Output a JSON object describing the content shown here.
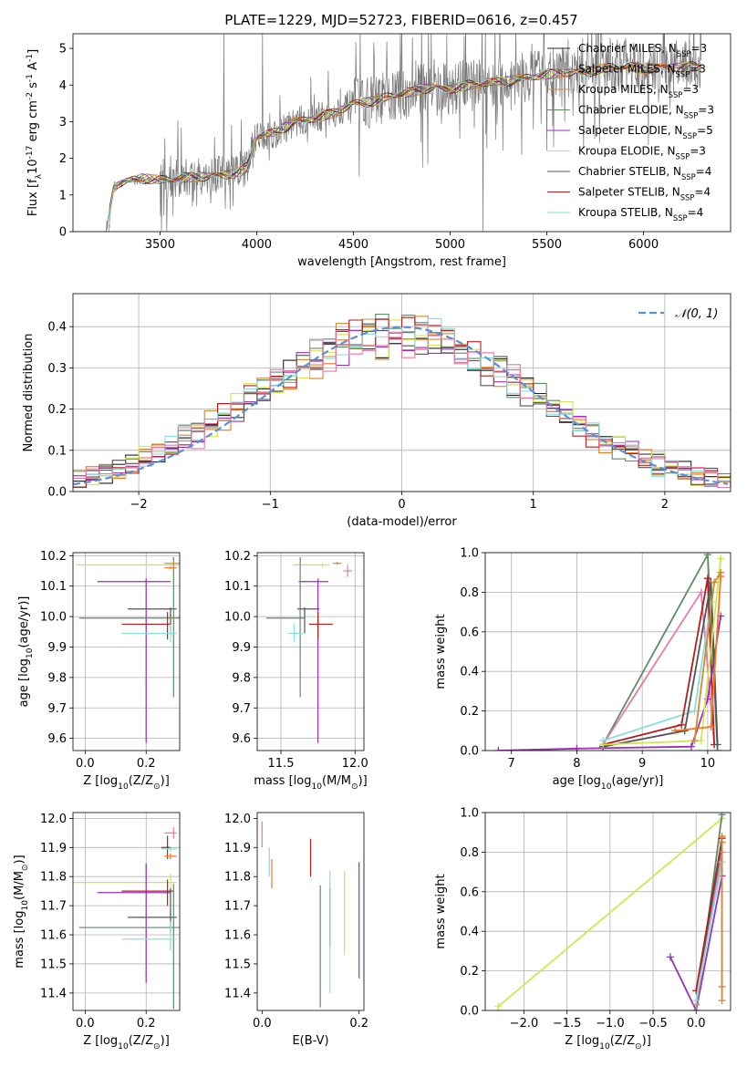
{
  "page_title": "PLATE=1229, MJD=52723, FIBERID=0616, z=0.457",
  "colors": {
    "Chabrier MILES": "#222222",
    "Salpeter MILES": "#f07820",
    "Kroupa MILES": "#d08a30",
    "Chabrier ELODIE": "#5e8c62",
    "Salpeter ELODIE": "#9b2fb8",
    "Kroupa ELODIE": "#d0e550",
    "Chabrier STELIB": "#555555",
    "Salpeter STELIB": "#b21e1e",
    "Kroupa STELIB": "#88dddd",
    "extra_pink": "#e87aa8",
    "gauss": "#5b8fd6"
  },
  "chart_data": [
    {
      "id": "spectrum",
      "type": "line",
      "title": "PLATE=1229, MJD=52723, FIBERID=0616, z=0.457",
      "xlabel": "wavelength [Angstrom, rest frame]",
      "ylabel": "Flux [f$_λ$10$^{-17}$ erg cm$^{-2}$ s$^{-1}$ A$^{-1}$]",
      "xlim": [
        3050,
        6450
      ],
      "ylim": [
        0,
        5.4
      ],
      "xticks": [
        3500,
        4000,
        4500,
        5000,
        5500,
        6000
      ],
      "yticks": [
        0,
        1,
        2,
        3,
        4,
        5
      ],
      "legend": [
        "Chabrier MILES, N$_{SSP}$=3",
        "Salpeter MILES, N$_{SSP}$=3",
        "Kroupa MILES, N$_{SSP}$=3",
        "Chabrier ELODIE, N$_{SSP}$=3",
        "Salpeter ELODIE, N$_{SSP}$=5",
        "Kroupa ELODIE, N$_{SSP}$=3",
        "Chabrier STELIB, N$_{SSP}$=4",
        "Salpeter STELIB, N$_{SSP}$=4",
        "Kroupa STELIB, N$_{SSP}$=4"
      ],
      "legend_placement": "upper-right",
      "continuum": {
        "x": [
          3220,
          3260,
          3300,
          3400,
          3500,
          3600,
          3700,
          3800,
          3900,
          3950,
          4000,
          4100,
          4200,
          4300,
          4400,
          4500,
          4600,
          4700,
          4800,
          4900,
          5000,
          5100,
          5200,
          5300,
          5400,
          5500,
          5600,
          5700,
          5800,
          5900,
          6000,
          6100,
          6200,
          6300
        ],
        "y": [
          0.0,
          1.2,
          1.35,
          1.45,
          1.4,
          1.45,
          1.5,
          1.55,
          1.6,
          1.75,
          2.6,
          2.7,
          3.0,
          3.1,
          3.25,
          3.5,
          3.55,
          3.7,
          3.8,
          3.95,
          3.9,
          4.0,
          4.05,
          4.1,
          4.2,
          4.3,
          4.35,
          4.35,
          4.45,
          4.5,
          4.45,
          4.5,
          4.5,
          4.5
        ]
      }
    },
    {
      "id": "residuals",
      "type": "step-histogram",
      "xlabel": "(data-model)/error",
      "ylabel": "Normed distribution",
      "xlim": [
        -2.5,
        2.5
      ],
      "ylim": [
        0,
        0.48
      ],
      "xticks": [
        -2,
        -1,
        0,
        1,
        2
      ],
      "yticks": [
        0.0,
        0.1,
        0.2,
        0.3,
        0.4
      ],
      "legend": [
        "$\\mathcal{N}(0,1)$"
      ],
      "legend_placement": "upper-right",
      "bin_width": 0.1
    },
    {
      "id": "age-vs-z",
      "type": "errorbar",
      "xlabel": "Z [log$_{10}$($Z/Z_\\odot$)]",
      "ylabel": "age  [log$_{10}$($age/yr$)]",
      "xlim": [
        -0.04,
        0.31
      ],
      "ylim": [
        9.56,
        10.21
      ],
      "xticks": [
        0.0,
        0.2
      ],
      "yticks": [
        9.6,
        9.7,
        9.8,
        9.9,
        10.0,
        10.1,
        10.2
      ],
      "points": [
        {
          "model": "Kroupa ELODIE",
          "x": 0.29,
          "y": 10.17,
          "xerr": [
            0.32,
            0.02
          ],
          "yerr": [
            0.01,
            0.005
          ]
        },
        {
          "model": "Salpeter ELODIE",
          "x": 0.2,
          "y": 10.115,
          "xerr": [
            0.16,
            0.08
          ],
          "yerr": [
            0.53,
            0.01
          ]
        },
        {
          "model": "Chabrier STELIB",
          "x": 0.28,
          "y": 10.025,
          "xerr": [
            0.14,
            0.02
          ],
          "yerr": [
            0.08,
            0.005
          ]
        },
        {
          "model": "Chabrier ELODIE",
          "x": 0.29,
          "y": 9.995,
          "xerr": [
            0.31,
            0.02
          ],
          "yerr": [
            0.26,
            0.2
          ]
        },
        {
          "model": "Salpeter STELIB",
          "x": 0.27,
          "y": 9.975,
          "xerr": [
            0.15,
            0.01
          ],
          "yerr": [
            0.05,
            0.04
          ]
        },
        {
          "model": "Kroupa STELIB",
          "x": 0.28,
          "y": 9.945,
          "xerr": [
            0.16,
            0.02
          ],
          "yerr": [
            0.03,
            0.03
          ]
        },
        {
          "model": "Kroupa MILES",
          "x": 0.29,
          "y": 10.175,
          "xerr": [
            0.03,
            0.02
          ],
          "yerr": [
            0.005,
            0.005
          ]
        },
        {
          "model": "Salpeter MILES",
          "x": 0.28,
          "y": 10.16,
          "xerr": [
            0.02,
            0.02
          ],
          "yerr": [
            0.005,
            0.005
          ]
        }
      ]
    },
    {
      "id": "age-vs-mass",
      "type": "errorbar",
      "xlabel": "mass [log$_{10}$($M/M_\\odot$)]",
      "xlim": [
        11.34,
        12.06
      ],
      "ylim": [
        9.56,
        10.21
      ],
      "xticks": [
        11.5,
        12.0
      ],
      "yticks": [
        9.6,
        9.7,
        9.8,
        9.9,
        10.0,
        10.1,
        10.2
      ],
      "points": [
        {
          "model": "Kroupa ELODIE",
          "x": 11.78,
          "y": 10.17,
          "xerr": [
            0.2,
            0.05
          ],
          "yerr": [
            0.01,
            0.005
          ]
        },
        {
          "model": "Salpeter ELODIE",
          "x": 11.75,
          "y": 10.115,
          "xerr": [
            0.13,
            0.07
          ],
          "yerr": [
            0.53,
            0.01
          ]
        },
        {
          "model": "Chabrier STELIB",
          "x": 11.66,
          "y": 10.025,
          "xerr": [
            0.05,
            0.1
          ],
          "yerr": [
            0.08,
            0.005
          ]
        },
        {
          "model": "Chabrier ELODIE",
          "x": 11.63,
          "y": 9.995,
          "xerr": [
            0.23,
            0.03
          ],
          "yerr": [
            0.26,
            0.2
          ]
        },
        {
          "model": "Salpeter STELIB",
          "x": 11.75,
          "y": 9.975,
          "xerr": [
            0.06,
            0.1
          ],
          "yerr": [
            0.05,
            0.04
          ]
        },
        {
          "model": "Kroupa STELIB",
          "x": 11.59,
          "y": 9.945,
          "xerr": [
            0.04,
            0.06
          ],
          "yerr": [
            0.03,
            0.03
          ]
        },
        {
          "model": "Kroupa MILES",
          "x": 11.88,
          "y": 10.175,
          "xerr": [
            0.03,
            0.03
          ],
          "yerr": [
            0.005,
            0.005
          ]
        },
        {
          "model": "extra_pink",
          "x": 11.95,
          "y": 10.15,
          "xerr": [
            0.03,
            0.03
          ],
          "yerr": [
            0.02,
            0.02
          ]
        }
      ]
    },
    {
      "id": "weight-vs-age",
      "type": "line",
      "xlabel": "age  [log$_{10}$($age/yr$)]",
      "ylabel": "mass weight",
      "xlim": [
        6.6,
        10.35
      ],
      "ylim": [
        0,
        1.0
      ],
      "xticks": [
        7,
        8,
        9,
        10
      ],
      "yticks": [
        0.0,
        0.2,
        0.4,
        0.6,
        0.8,
        1.0
      ],
      "series": [
        {
          "model": "Chabrier ELODIE",
          "x": [
            8.4,
            10.0,
            10.15
          ],
          "y": [
            0.03,
            0.99,
            0.0
          ]
        },
        {
          "model": "extra_pink",
          "x": [
            8.4,
            9.9,
            10.1
          ],
          "y": [
            0.03,
            0.8,
            0.03
          ]
        },
        {
          "model": "Kroupa STELIB",
          "x": [
            8.4,
            9.8,
            10.05
          ],
          "y": [
            0.05,
            0.2,
            0.75
          ]
        },
        {
          "model": "Salpeter STELIB",
          "x": [
            8.4,
            9.6,
            10.0,
            10.1
          ],
          "y": [
            0.03,
            0.13,
            0.87,
            0.03
          ]
        },
        {
          "model": "Salpeter ELODIE",
          "x": [
            6.8,
            8.0,
            9.75,
            10.0,
            10.2
          ],
          "y": [
            0.0,
            0.01,
            0.02,
            0.26,
            0.68
          ]
        },
        {
          "model": "Chabrier STELIB",
          "x": [
            8.4,
            9.65,
            10.05,
            10.15
          ],
          "y": [
            0.02,
            0.1,
            0.85,
            0.03
          ]
        },
        {
          "model": "Kroupa ELODIE",
          "x": [
            8.4,
            9.9,
            10.2
          ],
          "y": [
            0.03,
            0.05,
            0.97
          ]
        },
        {
          "model": "Salpeter MILES",
          "x": [
            9.5,
            10.05,
            10.2
          ],
          "y": [
            0.1,
            0.12,
            0.88
          ]
        },
        {
          "model": "Kroupa MILES",
          "x": [
            9.8,
            10.1,
            10.2
          ],
          "y": [
            0.05,
            0.85,
            0.9
          ]
        }
      ]
    },
    {
      "id": "mass-vs-z",
      "type": "errorbar",
      "xlabel": "Z [log$_{10}$($Z/Z_\\odot$)]",
      "ylabel": "mass [log$_{10}$($M/M_\\odot$)]",
      "xlim": [
        -0.04,
        0.31
      ],
      "ylim": [
        11.34,
        12.02
      ],
      "xticks": [
        0.0,
        0.2
      ],
      "yticks": [
        11.4,
        11.5,
        11.6,
        11.7,
        11.8,
        11.9,
        12.0
      ],
      "points": [
        {
          "model": "extra_pink",
          "x": 0.29,
          "y": 11.95,
          "xerr": [
            0.03,
            0.01
          ],
          "yerr": [
            0.02,
            0.02
          ]
        },
        {
          "model": "Salpeter STELIB",
          "x": 0.27,
          "y": 11.9,
          "xerr": [
            0.02,
            0.01
          ],
          "yerr": [
            0.04,
            0.04
          ]
        },
        {
          "model": "Kroupa STELIB",
          "x": 0.28,
          "y": 11.895,
          "xerr": [
            0.03,
            0.02
          ],
          "yerr": [
            0.01,
            0.01
          ]
        },
        {
          "model": "Salpeter MILES",
          "x": 0.28,
          "y": 11.87,
          "xerr": [
            0.02,
            0.02
          ],
          "yerr": [
            0.01,
            0.01
          ]
        },
        {
          "model": "Kroupa ELODIE",
          "x": 0.28,
          "y": 11.78,
          "xerr": [
            0.32,
            0.02
          ],
          "yerr": [
            0.02,
            0.03
          ]
        },
        {
          "model": "Salpeter ELODIE",
          "x": 0.2,
          "y": 11.745,
          "xerr": [
            0.16,
            0.08
          ],
          "yerr": [
            0.31,
            0.1
          ]
        },
        {
          "model": "Salpeter STELIB",
          "x": 0.27,
          "y": 11.75,
          "xerr": [
            0.15,
            0.02
          ],
          "yerr": [
            0.05,
            0.04
          ]
        },
        {
          "model": "Chabrier STELIB",
          "x": 0.28,
          "y": 11.66,
          "xerr": [
            0.14,
            0.02
          ],
          "yerr": [
            0.05,
            0.1
          ]
        },
        {
          "model": "Chabrier ELODIE",
          "x": 0.29,
          "y": 11.625,
          "xerr": [
            0.31,
            0.02
          ],
          "yerr": [
            0.28,
            0.15
          ]
        },
        {
          "model": "Kroupa STELIB",
          "x": 0.28,
          "y": 11.585,
          "xerr": [
            0.16,
            0.02
          ],
          "yerr": [
            0.04,
            0.06
          ]
        }
      ]
    },
    {
      "id": "mass-vs-ebv",
      "type": "errorbar",
      "xlabel": "E(B-V)",
      "xlim": [
        -0.01,
        0.21
      ],
      "ylim": [
        11.34,
        12.02
      ],
      "xticks": [
        0.0,
        0.2
      ],
      "yticks": [
        11.4,
        11.5,
        11.6,
        11.7,
        11.8,
        11.9,
        12.0
      ],
      "points": [
        {
          "model": "extra_pink",
          "x": 0.0,
          "y": 11.95,
          "xerr": [
            0,
            0
          ],
          "yerr": [
            0.05,
            0.04
          ]
        },
        {
          "model": "Kroupa STELIB",
          "x": 0.015,
          "y": 11.85,
          "xerr": [
            0,
            0
          ],
          "yerr": [
            0.05,
            0.05
          ]
        },
        {
          "model": "Salpeter MILES",
          "x": 0.02,
          "y": 11.8,
          "xerr": [
            0,
            0
          ],
          "yerr": [
            0.04,
            0.06
          ]
        },
        {
          "model": "Salpeter STELIB",
          "x": 0.1,
          "y": 11.85,
          "xerr": [
            0,
            0
          ],
          "yerr": [
            0.05,
            0.08
          ]
        },
        {
          "model": "Chabrier ELODIE",
          "x": 0.12,
          "y": 11.57,
          "xerr": [
            0,
            0
          ],
          "yerr": [
            0.22,
            0.2
          ]
        },
        {
          "model": "Chabrier STELIB",
          "x": 0.14,
          "y": 11.66,
          "xerr": [
            0,
            0
          ],
          "yerr": [
            0.1,
            0.1
          ]
        },
        {
          "model": "Kroupa STELIB",
          "x": 0.14,
          "y": 11.6,
          "xerr": [
            0,
            0
          ],
          "yerr": [
            0.2,
            0.22
          ]
        },
        {
          "model": "Kroupa ELODIE",
          "x": 0.17,
          "y": 11.68,
          "xerr": [
            0,
            0
          ],
          "yerr": [
            0.15,
            0.14
          ]
        },
        {
          "model": "Salpeter ELODIE",
          "x": 0.2,
          "y": 11.65,
          "xerr": [
            0,
            0
          ],
          "yerr": [
            0.2,
            0.2
          ]
        }
      ]
    },
    {
      "id": "weight-vs-z",
      "type": "line",
      "xlabel": "Z [log$_{10}$($Z/Z_\\odot$)]",
      "ylabel": "mass weight",
      "xlim": [
        -2.45,
        0.4
      ],
      "ylim": [
        0,
        1.0
      ],
      "xticks": [
        -2.0,
        -1.5,
        -1.0,
        -0.5,
        0.0,
        0.5
      ],
      "yticks": [
        0.0,
        0.2,
        0.4,
        0.6,
        0.8,
        1.0
      ],
      "series": [
        {
          "model": "Kroupa ELODIE",
          "x": [
            -2.3,
            0.3
          ],
          "y": [
            0.02,
            0.97
          ]
        },
        {
          "model": "Salpeter ELODIE",
          "x": [
            -0.3,
            0.0,
            0.3
          ],
          "y": [
            0.27,
            0.0,
            0.68
          ]
        },
        {
          "model": "Chabrier ELODIE",
          "x": [
            0.0,
            0.3
          ],
          "y": [
            0.0,
            0.99
          ]
        },
        {
          "model": "Salpeter STELIB",
          "x": [
            0.0,
            0.3
          ],
          "y": [
            0.1,
            0.87
          ]
        },
        {
          "model": "Chabrier STELIB",
          "x": [
            0.0,
            0.3
          ],
          "y": [
            0.03,
            0.85
          ]
        },
        {
          "model": "extra_pink",
          "x": [
            0.0,
            0.3
          ],
          "y": [
            0.03,
            0.8
          ]
        },
        {
          "model": "Kroupa STELIB",
          "x": [
            0.0,
            0.3
          ],
          "y": [
            0.05,
            0.75
          ]
        },
        {
          "model": "Salpeter MILES",
          "x": [
            0.3,
            0.3
          ],
          "y": [
            0.12,
            0.88
          ]
        },
        {
          "model": "Kroupa MILES",
          "x": [
            0.3,
            0.3
          ],
          "y": [
            0.05,
            0.85
          ]
        }
      ]
    }
  ]
}
